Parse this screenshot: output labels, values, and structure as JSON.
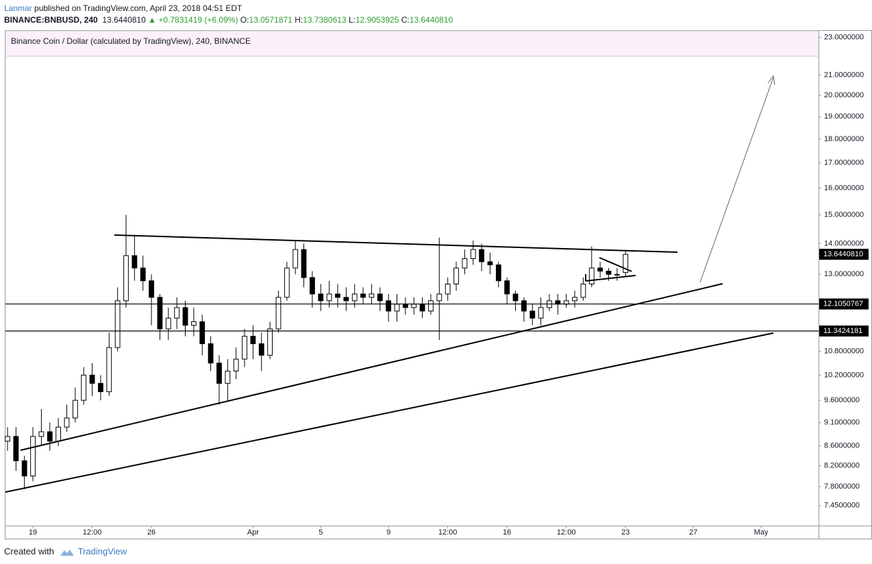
{
  "header": {
    "author": "Lanmar",
    "published": "published on TradingView.com, April 23, 2018 04:51 EDT",
    "symbol": "BINANCE:BNBUSD, 240",
    "last": "13.6440810",
    "change_arrow": "▲",
    "change": "+0.7831419 (+6.09%)",
    "open_label": "O:",
    "open": "13.0571871",
    "high_label": "H:",
    "high": "13.7380613",
    "low_label": "L:",
    "low": "12.9053925",
    "close_label": "C:",
    "close": "13.6440810"
  },
  "chart_data": {
    "type": "candlestick",
    "title": "Binance Coin / Dollar (calculated by TradingView), 240, BINANCE",
    "x": [
      -1.5,
      -1,
      -0.5,
      0,
      0.5,
      1,
      1.5,
      2,
      2.5,
      3,
      3.5,
      4,
      4.5,
      5,
      5.5,
      6,
      6.5,
      7,
      7.5,
      8,
      8.5,
      9,
      9.5,
      10,
      10.5,
      11,
      11.5,
      12,
      12.5,
      13,
      13.5,
      14,
      14.5,
      15,
      15.5,
      16,
      16.5,
      17,
      17.5,
      18,
      18.5,
      19,
      19.5,
      20,
      20.5,
      21,
      21.5,
      22,
      22.5,
      23,
      23.5,
      24,
      24.5,
      25,
      25.5,
      26,
      26.5,
      27,
      27.5,
      28,
      28.5,
      29,
      29.5,
      30,
      30.5,
      31,
      31.5,
      32,
      32.5,
      33,
      33.5,
      34,
      34.5,
      35
    ],
    "open": [
      8.7,
      8.8,
      8.3,
      8.0,
      8.8,
      8.9,
      8.7,
      9.0,
      9.2,
      9.6,
      10.2,
      10.0,
      9.8,
      10.9,
      12.2,
      13.6,
      13.2,
      12.8,
      12.3,
      11.4,
      11.7,
      12.0,
      11.5,
      11.6,
      11.0,
      10.5,
      10.0,
      10.3,
      10.6,
      11.2,
      11.0,
      10.7,
      11.4,
      12.3,
      13.2,
      13.8,
      12.9,
      12.4,
      12.2,
      12.4,
      12.3,
      12.2,
      12.4,
      12.3,
      12.4,
      12.2,
      11.9,
      12.1,
      12.0,
      12.1,
      11.9,
      12.2,
      12.4,
      12.7,
      13.2,
      13.5,
      13.8,
      13.4,
      13.3,
      12.8,
      12.4,
      12.2,
      11.9,
      11.7,
      12.0,
      12.2,
      12.1,
      12.2,
      12.3,
      12.7,
      13.2,
      13.1,
      13.0,
      13.06
    ],
    "high": [
      9.0,
      9.0,
      8.4,
      9.0,
      9.4,
      9.1,
      9.2,
      9.5,
      9.9,
      10.4,
      10.5,
      10.2,
      11.3,
      12.6,
      15.0,
      14.3,
      13.6,
      13.0,
      12.4,
      12.0,
      12.3,
      12.2,
      12.0,
      11.8,
      11.2,
      10.7,
      10.6,
      10.9,
      11.4,
      11.5,
      11.3,
      11.6,
      12.5,
      13.4,
      14.1,
      14.0,
      13.1,
      12.7,
      12.8,
      12.7,
      12.6,
      12.7,
      12.6,
      12.7,
      12.6,
      12.4,
      12.4,
      12.3,
      12.3,
      12.3,
      12.4,
      14.2,
      12.9,
      13.4,
      13.8,
      14.1,
      14.0,
      13.7,
      13.4,
      12.9,
      12.5,
      12.3,
      12.1,
      12.3,
      12.4,
      12.4,
      12.4,
      12.5,
      12.9,
      13.9,
      13.4,
      13.2,
      13.2,
      13.74
    ],
    "low": [
      8.5,
      8.1,
      7.75,
      7.9,
      8.6,
      8.5,
      8.6,
      8.9,
      9.1,
      9.5,
      9.7,
      9.6,
      9.7,
      10.8,
      12.0,
      12.8,
      12.5,
      11.5,
      11.1,
      11.1,
      11.4,
      11.2,
      11.2,
      10.7,
      10.3,
      9.5,
      9.6,
      10.1,
      10.4,
      10.6,
      10.3,
      10.6,
      11.3,
      12.2,
      13.0,
      12.6,
      12.0,
      11.9,
      12.0,
      12.0,
      11.9,
      12.0,
      12.1,
      12.1,
      11.9,
      11.6,
      11.6,
      11.8,
      11.8,
      11.7,
      11.8,
      11.1,
      12.2,
      12.5,
      13.0,
      13.3,
      13.1,
      13.0,
      12.6,
      12.1,
      11.9,
      11.6,
      11.5,
      11.5,
      11.9,
      11.8,
      12.0,
      12.0,
      12.2,
      12.6,
      12.9,
      12.8,
      12.8,
      12.91
    ],
    "close": [
      8.8,
      8.3,
      8.0,
      8.8,
      8.9,
      8.7,
      9.0,
      9.2,
      9.6,
      10.2,
      10.0,
      9.8,
      10.9,
      12.2,
      13.6,
      13.2,
      12.8,
      12.3,
      11.4,
      11.7,
      12.0,
      11.5,
      11.6,
      11.0,
      10.5,
      10.0,
      10.3,
      10.6,
      11.2,
      11.0,
      10.7,
      11.4,
      12.3,
      13.2,
      13.8,
      12.9,
      12.4,
      12.2,
      12.4,
      12.3,
      12.2,
      12.4,
      12.3,
      12.4,
      12.2,
      11.9,
      12.1,
      12.0,
      12.1,
      11.9,
      12.2,
      12.4,
      12.7,
      13.2,
      13.5,
      13.8,
      13.4,
      13.3,
      12.8,
      12.4,
      12.2,
      11.9,
      11.7,
      12.0,
      12.2,
      12.1,
      12.2,
      12.3,
      12.7,
      13.2,
      13.1,
      13.0,
      13.0,
      13.64
    ],
    "up_color": "#ffffff",
    "down_color": "#000000",
    "xlim": [
      -1.62,
      46.4
    ],
    "xticks": [
      {
        "value": 0,
        "label": "19"
      },
      {
        "value": 3.5,
        "label": "12:00"
      },
      {
        "value": 7,
        "label": "26"
      },
      {
        "value": 13,
        "label": "Apr"
      },
      {
        "value": 17,
        "label": "5"
      },
      {
        "value": 21,
        "label": "9"
      },
      {
        "value": 24.5,
        "label": "12:00"
      },
      {
        "value": 28,
        "label": "16"
      },
      {
        "value": 31.5,
        "label": "12:00"
      },
      {
        "value": 35,
        "label": "23"
      },
      {
        "value": 39,
        "label": "27"
      },
      {
        "value": 43,
        "label": "May"
      }
    ],
    "ylim": [
      7.1,
      23.4
    ],
    "log_scale": true,
    "yticks": [
      {
        "value": 7.45,
        "label": "7.4500000"
      },
      {
        "value": 7.8,
        "label": "7.8000000"
      },
      {
        "value": 8.2,
        "label": "8.2000000"
      },
      {
        "value": 8.6,
        "label": "8.6000000"
      },
      {
        "value": 9.1,
        "label": "9.1000000"
      },
      {
        "value": 9.6,
        "label": "9.6000000"
      },
      {
        "value": 10.2,
        "label": "10.2000000"
      },
      {
        "value": 10.8,
        "label": "10.8000000"
      },
      {
        "value": 13,
        "label": "13.0000000"
      },
      {
        "value": 14,
        "label": "14.0000000"
      },
      {
        "value": 15,
        "label": "15.0000000"
      },
      {
        "value": 16,
        "label": "16.0000000"
      },
      {
        "value": 17,
        "label": "17.0000000"
      },
      {
        "value": 18,
        "label": "18.0000000"
      },
      {
        "value": 19,
        "label": "19.0000000"
      },
      {
        "value": 20,
        "label": "20.0000000"
      },
      {
        "value": 21,
        "label": "21.0000000"
      },
      {
        "value": 23,
        "label": "23.0000000"
      }
    ],
    "price_lines": [
      {
        "value": 12.1050767,
        "label": "12.1050767"
      },
      {
        "value": 11.3424181,
        "label": "11.3424181"
      }
    ],
    "last_price": {
      "value": 13.644081,
      "label": "13.6440810"
    }
  },
  "footer": {
    "created": "Created with",
    "brand": "TradingView"
  }
}
